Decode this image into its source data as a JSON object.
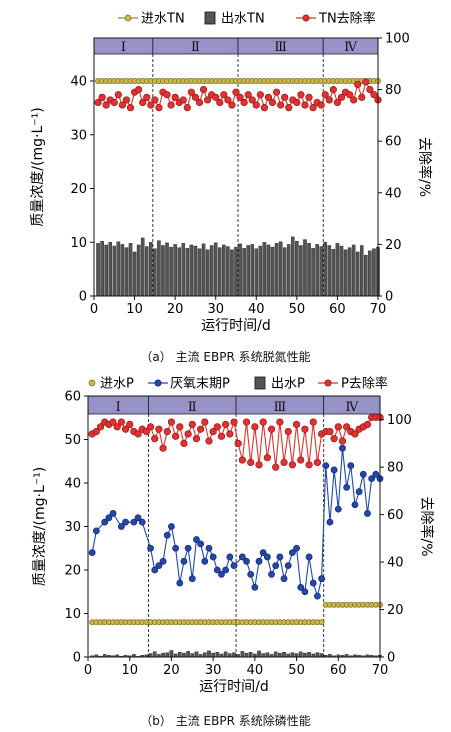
{
  "chart_data": [
    {
      "type": "bar",
      "panel_caption": "（a） 主流 EBPR 系统脱氮性能",
      "legend": [
        "进水TN",
        "出水TN",
        "TN去除率"
      ],
      "xlabel": "运行时间/d",
      "ylabel": "质量浓度/(mg·L⁻¹)",
      "y2label": "去除率/%",
      "xlim": [
        0,
        70
      ],
      "ylim": [
        0,
        48
      ],
      "y2lim": [
        0,
        100
      ],
      "xticks": [
        0,
        10,
        20,
        30,
        40,
        50,
        60,
        70
      ],
      "yticks": [
        0,
        10,
        20,
        30,
        40
      ],
      "y2ticks": [
        0,
        20,
        40,
        60,
        80,
        100
      ],
      "phases": [
        {
          "label": "Ⅰ",
          "start": 0,
          "end": 14.5
        },
        {
          "label": "Ⅱ",
          "start": 14.5,
          "end": 35.5
        },
        {
          "label": "Ⅲ",
          "start": 35.5,
          "end": 56.5
        },
        {
          "label": "Ⅳ",
          "start": 56.5,
          "end": 70
        }
      ],
      "series": [
        {
          "name": "进水TN",
          "axis": "left",
          "style": "line-marker",
          "color": "#b5a53a",
          "x": [
            1,
            2,
            3,
            4,
            5,
            6,
            7,
            8,
            9,
            10,
            11,
            12,
            13,
            14,
            15,
            16,
            17,
            18,
            19,
            20,
            21,
            22,
            23,
            24,
            25,
            26,
            27,
            28,
            29,
            30,
            31,
            32,
            33,
            34,
            35,
            36,
            37,
            38,
            39,
            40,
            41,
            42,
            43,
            44,
            45,
            46,
            47,
            48,
            49,
            50,
            51,
            52,
            53,
            54,
            55,
            56,
            57,
            58,
            59,
            60,
            61,
            62,
            63,
            64,
            65,
            66,
            67,
            68,
            69,
            70
          ],
          "values": [
            40,
            40,
            40,
            40,
            40,
            40,
            40,
            40,
            40,
            40,
            40,
            40,
            40,
            40,
            40,
            40,
            40,
            40,
            40,
            40,
            40,
            40,
            40,
            40,
            40,
            40,
            40,
            40,
            40,
            40,
            40,
            40,
            40,
            40,
            40,
            40,
            40,
            40,
            40,
            40,
            40,
            40,
            40,
            40,
            40,
            40,
            40,
            40,
            40,
            40,
            40,
            40,
            40,
            40,
            40,
            40,
            40,
            40,
            40,
            40,
            40,
            40,
            40,
            40,
            40,
            40,
            40,
            40,
            40,
            40
          ]
        },
        {
          "name": "出水TN",
          "axis": "left",
          "style": "bar",
          "color": "#555555",
          "x": [
            1,
            2,
            3,
            4,
            5,
            6,
            7,
            8,
            9,
            10,
            11,
            12,
            13,
            14,
            15,
            16,
            17,
            18,
            19,
            20,
            21,
            22,
            23,
            24,
            25,
            26,
            27,
            28,
            29,
            30,
            31,
            32,
            33,
            34,
            35,
            36,
            37,
            38,
            39,
            40,
            41,
            42,
            43,
            44,
            45,
            46,
            47,
            48,
            49,
            50,
            51,
            52,
            53,
            54,
            55,
            56,
            57,
            58,
            59,
            60,
            61,
            62,
            63,
            64,
            65,
            66,
            67,
            68,
            69,
            70
          ],
          "values": [
            9.8,
            10.2,
            9.5,
            10.0,
            9.3,
            10.1,
            9.6,
            9.0,
            9.8,
            8.2,
            9.5,
            10.8,
            9.2,
            10.0,
            8.8,
            10.3,
            9.4,
            9.9,
            9.1,
            9.6,
            9.0,
            9.8,
            8.9,
            9.5,
            9.3,
            8.8,
            9.7,
            8.6,
            9.4,
            9.9,
            9.0,
            9.5,
            9.2,
            8.6,
            9.1,
            9.7,
            8.9,
            9.4,
            9.6,
            8.8,
            9.3,
            10.0,
            9.5,
            9.1,
            9.8,
            10.1,
            9.0,
            9.6,
            11.0,
            10.2,
            9.4,
            10.5,
            9.8,
            8.9,
            9.6,
            9.2,
            10.0,
            9.4,
            8.7,
            9.8,
            9.3,
            8.6,
            9.0,
            9.5,
            8.2,
            9.4,
            7.6,
            8.4,
            8.8,
            9.1
          ]
        },
        {
          "name": "TN去除率",
          "axis": "right",
          "style": "line-marker",
          "color": "#e03232",
          "x": [
            1,
            2,
            3,
            4,
            5,
            6,
            7,
            8,
            9,
            10,
            11,
            12,
            13,
            14,
            15,
            16,
            17,
            18,
            19,
            20,
            21,
            22,
            23,
            24,
            25,
            26,
            27,
            28,
            29,
            30,
            31,
            32,
            33,
            34,
            35,
            36,
            37,
            38,
            39,
            40,
            41,
            42,
            43,
            44,
            45,
            46,
            47,
            48,
            49,
            50,
            51,
            52,
            53,
            54,
            55,
            56,
            57,
            58,
            59,
            60,
            61,
            62,
            63,
            64,
            65,
            66,
            67,
            68,
            69,
            70
          ],
          "values": [
            75,
            77,
            74,
            76,
            75,
            78,
            74,
            76,
            73,
            79,
            80,
            75,
            77,
            74,
            76,
            73,
            79,
            78,
            74,
            77,
            75,
            76,
            73,
            79,
            77,
            75,
            80,
            76,
            78,
            77,
            75,
            78,
            76,
            74,
            79,
            77,
            75,
            78,
            76,
            74,
            78,
            73,
            77,
            75,
            79,
            74,
            77,
            73,
            76,
            75,
            78,
            74,
            77,
            73,
            75,
            74,
            78,
            76,
            80,
            75,
            77,
            79,
            78,
            76,
            82,
            77,
            83,
            80,
            78,
            76
          ]
        }
      ]
    },
    {
      "type": "bar",
      "panel_caption": "（b） 主流 EBPR 系统除磷性能",
      "legend": [
        "进水P",
        "厌氧末期P",
        "出水P",
        "P去除率"
      ],
      "xlabel": "运行时间/d",
      "ylabel": "质量浓度/(mg·L⁻¹)",
      "y2label": "去除率/%",
      "xlim": [
        0,
        70
      ],
      "ylim": [
        0,
        60
      ],
      "y2lim": [
        0,
        110
      ],
      "xticks": [
        0,
        10,
        20,
        30,
        40,
        50,
        60,
        70
      ],
      "yticks": [
        0,
        10,
        20,
        30,
        40,
        50,
        60
      ],
      "y2ticks": [
        0,
        20,
        40,
        60,
        80,
        100
      ],
      "phases": [
        {
          "label": "Ⅰ",
          "start": 0,
          "end": 14.5
        },
        {
          "label": "Ⅱ",
          "start": 14.5,
          "end": 35.5
        },
        {
          "label": "Ⅲ",
          "start": 35.5,
          "end": 56.5
        },
        {
          "label": "Ⅳ",
          "start": 56.5,
          "end": 70
        }
      ],
      "series": [
        {
          "name": "进水P",
          "axis": "left",
          "style": "line-marker",
          "color": "#b5a53a",
          "x": [
            1,
            2,
            3,
            4,
            5,
            6,
            7,
            8,
            9,
            10,
            11,
            12,
            13,
            14,
            15,
            16,
            17,
            18,
            19,
            20,
            21,
            22,
            23,
            24,
            25,
            26,
            27,
            28,
            29,
            30,
            31,
            32,
            33,
            34,
            35,
            36,
            37,
            38,
            39,
            40,
            41,
            42,
            43,
            44,
            45,
            46,
            47,
            48,
            49,
            50,
            51,
            52,
            53,
            54,
            55,
            56,
            57,
            58,
            59,
            60,
            61,
            62,
            63,
            64,
            65,
            66,
            67,
            68,
            69,
            70
          ],
          "values": [
            8,
            8,
            8,
            8,
            8,
            8,
            8,
            8,
            8,
            8,
            8,
            8,
            8,
            8,
            8,
            8,
            8,
            8,
            8,
            8,
            8,
            8,
            8,
            8,
            8,
            8,
            8,
            8,
            8,
            8,
            8,
            8,
            8,
            8,
            8,
            8,
            8,
            8,
            8,
            8,
            8,
            8,
            8,
            8,
            8,
            8,
            8,
            8,
            8,
            8,
            8,
            8,
            8,
            8,
            8,
            8,
            12,
            12,
            12,
            12,
            12,
            12,
            12,
            12,
            12,
            12,
            12,
            12,
            12,
            12
          ]
        },
        {
          "name": "厌氧末期P",
          "axis": "left",
          "style": "line-marker",
          "color": "#2447a8",
          "x": [
            1,
            2,
            4,
            5,
            6,
            8,
            9,
            11,
            12,
            13,
            15,
            16,
            17,
            18,
            19,
            20,
            21,
            22,
            23,
            24,
            25,
            26,
            27,
            28,
            29,
            30,
            31,
            32,
            33,
            34,
            35,
            37,
            38,
            39,
            40,
            41,
            42,
            43,
            44,
            45,
            46,
            47,
            48,
            49,
            50,
            51,
            52,
            53,
            54,
            55,
            56,
            57,
            58,
            59,
            60,
            61,
            62,
            63,
            64,
            65,
            66,
            67,
            68,
            69,
            70
          ],
          "values": [
            24,
            29,
            31,
            32,
            33,
            30,
            31,
            31,
            32,
            31,
            25,
            20,
            21,
            22,
            28,
            30,
            25,
            17,
            22,
            25,
            18,
            27,
            26,
            22,
            25,
            23,
            20,
            19,
            20,
            23,
            21,
            23,
            22,
            19,
            16,
            22,
            24,
            23,
            19,
            21,
            23,
            18,
            21,
            24,
            25,
            16,
            15,
            23,
            17,
            14,
            18,
            44,
            31,
            43,
            34,
            48,
            39,
            44,
            35,
            38,
            42,
            33,
            41,
            42,
            41
          ]
        },
        {
          "name": "出水P",
          "axis": "left",
          "style": "bar",
          "color": "#555555",
          "x": [
            1,
            2,
            3,
            4,
            5,
            6,
            7,
            8,
            9,
            10,
            11,
            12,
            13,
            14,
            15,
            16,
            17,
            18,
            19,
            20,
            21,
            22,
            23,
            24,
            25,
            26,
            27,
            28,
            29,
            30,
            31,
            32,
            33,
            34,
            35,
            36,
            37,
            38,
            39,
            40,
            41,
            42,
            43,
            44,
            45,
            46,
            47,
            48,
            49,
            50,
            51,
            52,
            53,
            54,
            55,
            56,
            57,
            58,
            59,
            60,
            61,
            62,
            63,
            64,
            65,
            66,
            67,
            68,
            69,
            70
          ],
          "values": [
            0.3,
            0.5,
            0.2,
            0.6,
            0.4,
            0.3,
            0.5,
            0.2,
            0.4,
            0.3,
            0.6,
            0.2,
            0.4,
            0.5,
            0.8,
            1.2,
            0.6,
            0.9,
            1.0,
            1.5,
            0.7,
            1.1,
            0.9,
            1.3,
            0.8,
            1.2,
            0.6,
            1.0,
            1.4,
            0.9,
            1.1,
            0.7,
            1.2,
            0.8,
            1.0,
            0.6,
            1.3,
            0.9,
            1.1,
            0.7,
            1.4,
            0.8,
            1.0,
            0.6,
            1.2,
            0.9,
            1.1,
            0.7,
            1.0,
            0.8,
            1.2,
            0.9,
            1.1,
            0.7,
            1.0,
            0.8,
            0.4,
            0.6,
            0.3,
            0.5,
            0.4,
            0.6,
            0.3,
            0.5,
            0.4,
            0.3,
            0.5,
            0.4,
            0.3,
            0.4
          ]
        },
        {
          "name": "P去除率",
          "axis": "right",
          "style": "line-marker",
          "color": "#e03232",
          "x": [
            1,
            2,
            3,
            4,
            5,
            6,
            7,
            8,
            9,
            10,
            11,
            12,
            13,
            14,
            15,
            16,
            17,
            18,
            19,
            20,
            21,
            22,
            23,
            24,
            25,
            26,
            27,
            28,
            29,
            30,
            31,
            32,
            33,
            34,
            35,
            36,
            37,
            38,
            39,
            40,
            41,
            42,
            43,
            44,
            45,
            46,
            47,
            48,
            49,
            50,
            51,
            52,
            53,
            54,
            55,
            56,
            57,
            58,
            59,
            60,
            61,
            62,
            63,
            64,
            65,
            66,
            67,
            68,
            69,
            70
          ],
          "values": [
            94,
            95,
            97,
            99,
            98,
            99,
            97,
            99,
            96,
            98,
            95,
            94,
            96,
            95,
            97,
            92,
            96,
            88,
            95,
            99,
            93,
            97,
            90,
            94,
            98,
            92,
            96,
            99,
            91,
            95,
            97,
            93,
            98,
            94,
            99,
            90,
            83,
            99,
            82,
            97,
            81,
            99,
            84,
            96,
            80,
            99,
            82,
            95,
            81,
            98,
            83,
            96,
            81,
            99,
            82,
            94,
            95,
            95,
            92,
            97,
            91,
            97,
            95,
            94,
            96,
            97,
            98,
            101,
            101,
            101
          ]
        }
      ]
    }
  ]
}
